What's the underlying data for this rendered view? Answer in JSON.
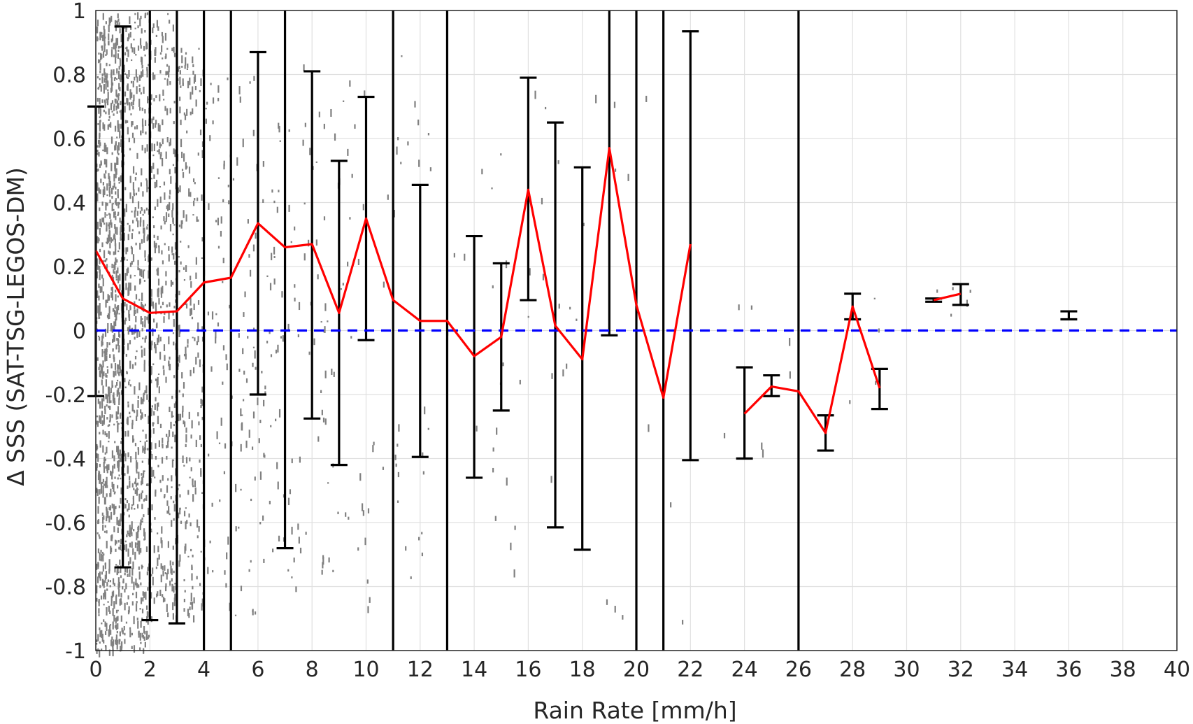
{
  "chart_data": {
    "type": "scatter",
    "xlabel": "Rain Rate [mm/h]",
    "ylabel": "Δ SSS (SAT-TSG-LEGOS-DM)",
    "xlim": [
      0,
      40
    ],
    "ylim": [
      -1,
      1
    ],
    "xticks": [
      0,
      2,
      4,
      6,
      8,
      10,
      12,
      14,
      16,
      18,
      20,
      22,
      24,
      26,
      28,
      30,
      32,
      34,
      36,
      38,
      40
    ],
    "yticks": [
      1,
      0.8,
      0.6,
      0.4,
      0.2,
      0,
      -0.2,
      -0.4,
      -0.6,
      -0.8,
      -1
    ],
    "ytick_labels": [
      "1",
      "0.8",
      "0.6",
      "0.4",
      "0.2",
      "0",
      "-0.2",
      "-0.4",
      "-0.6",
      "-0.8",
      "-1"
    ],
    "grid": true,
    "colors": {
      "scatter": "#808080",
      "mean_line": "#ff0000",
      "error_bars": "#000000",
      "zero_line": "#0000ff",
      "grid": "#e0e0e0",
      "axes": "#262626"
    },
    "reference_line": {
      "y": 0,
      "style": "dashed"
    },
    "series": [
      {
        "kind": "mean_line",
        "x": [
          0,
          1,
          2,
          3,
          4,
          5,
          6,
          7,
          8,
          9,
          10,
          11,
          12,
          13,
          14,
          15,
          16,
          17,
          18,
          19,
          20,
          21,
          22
        ],
        "y": [
          0.25,
          0.1,
          0.055,
          0.06,
          0.15,
          0.165,
          0.335,
          0.26,
          0.27,
          0.055,
          0.35,
          0.095,
          0.03,
          0.03,
          -0.08,
          -0.02,
          0.44,
          0.015,
          -0.09,
          0.57,
          0.08,
          -0.21,
          0.27
        ]
      },
      {
        "kind": "mean_line",
        "x": [
          24,
          25,
          26,
          27,
          28,
          29
        ],
        "y": [
          -0.26,
          -0.175,
          -0.19,
          -0.32,
          0.075,
          -0.18
        ]
      },
      {
        "kind": "mean_line",
        "x": [
          31,
          32
        ],
        "y": [
          0.095,
          0.115
        ]
      }
    ],
    "error_bars": [
      {
        "x": 0,
        "low": -0.205,
        "high": 0.7,
        "capped": true
      },
      {
        "x": 1,
        "low": -0.74,
        "high": 0.95,
        "capped": true
      },
      {
        "x": 2,
        "low": -0.905,
        "high": 1.0,
        "capped": true
      },
      {
        "x": 3,
        "low": -0.915,
        "high": 1.0,
        "capped": true
      },
      {
        "x": 4,
        "low": -1.0,
        "high": 1.0,
        "capped": false
      },
      {
        "x": 5,
        "low": -1.0,
        "high": 1.0,
        "capped": false
      },
      {
        "x": 6,
        "low": -0.2,
        "high": 0.87,
        "capped": true
      },
      {
        "x": 7,
        "low": -0.68,
        "high": 1.0,
        "capped": true
      },
      {
        "x": 8,
        "low": -0.275,
        "high": 0.81,
        "capped": true
      },
      {
        "x": 9,
        "low": -0.42,
        "high": 0.53,
        "capped": true
      },
      {
        "x": 10,
        "low": -0.03,
        "high": 0.73,
        "capped": true
      },
      {
        "x": 11,
        "low": -1.0,
        "high": 1.0,
        "capped": false
      },
      {
        "x": 12,
        "low": -0.395,
        "high": 0.455,
        "capped": true
      },
      {
        "x": 13,
        "low": -1.0,
        "high": 1.0,
        "capped": false
      },
      {
        "x": 14,
        "low": -0.46,
        "high": 0.295,
        "capped": true
      },
      {
        "x": 15,
        "low": -0.25,
        "high": 0.21,
        "capped": true
      },
      {
        "x": 16,
        "low": 0.095,
        "high": 0.79,
        "capped": true
      },
      {
        "x": 17,
        "low": -0.615,
        "high": 0.65,
        "capped": true
      },
      {
        "x": 18,
        "low": -0.685,
        "high": 0.51,
        "capped": true
      },
      {
        "x": 19,
        "low": -0.015,
        "high": 1.0,
        "capped": true
      },
      {
        "x": 20,
        "low": -1.0,
        "high": 1.0,
        "capped": false
      },
      {
        "x": 21,
        "low": -1.0,
        "high": 1.0,
        "capped": false
      },
      {
        "x": 22,
        "low": -0.405,
        "high": 0.935,
        "capped": true
      },
      {
        "x": 24,
        "low": -0.4,
        "high": -0.115,
        "capped": true
      },
      {
        "x": 25,
        "low": -0.205,
        "high": -0.14,
        "capped": true
      },
      {
        "x": 26,
        "low": -1.0,
        "high": 1.0,
        "capped": false
      },
      {
        "x": 27,
        "low": -0.375,
        "high": -0.265,
        "capped": true
      },
      {
        "x": 28,
        "low": 0.035,
        "high": 0.115,
        "capped": true
      },
      {
        "x": 29,
        "low": -0.245,
        "high": -0.12,
        "capped": true
      },
      {
        "x": 31,
        "low": 0.09,
        "high": 0.1,
        "capped": true
      },
      {
        "x": 32,
        "low": 0.08,
        "high": 0.145,
        "capped": true
      },
      {
        "x": 36,
        "low": 0.035,
        "high": 0.06,
        "capped": true
      }
    ],
    "scatter_clusters": [
      {
        "x_from": 0,
        "x_to": 1,
        "y_low": -1.0,
        "y_high": 1.0,
        "density": 1.0
      },
      {
        "x_from": 1,
        "x_to": 2,
        "y_low": -1.0,
        "y_high": 1.0,
        "density": 0.6
      },
      {
        "x_from": 2,
        "x_to": 3,
        "y_low": -0.9,
        "y_high": 1.0,
        "density": 0.4
      },
      {
        "x_from": 3,
        "x_to": 4,
        "y_low": -0.9,
        "y_high": 0.9,
        "density": 0.25
      },
      {
        "x_from": 4,
        "x_to": 6,
        "y_low": -0.9,
        "y_high": 0.85,
        "density": 0.12
      },
      {
        "x_from": 6,
        "x_to": 8,
        "y_low": -0.8,
        "y_high": 0.85,
        "density": 0.09
      },
      {
        "x_from": 8,
        "x_to": 10,
        "y_low": -0.8,
        "y_high": 0.8,
        "density": 0.06
      },
      {
        "x_from": 10,
        "x_to": 13,
        "y_low": -0.9,
        "y_high": 0.9,
        "density": 0.04
      },
      {
        "x_from": 13,
        "x_to": 17,
        "y_low": -0.8,
        "y_high": 0.8,
        "density": 0.03
      },
      {
        "x_from": 17,
        "x_to": 22,
        "y_low": -0.95,
        "y_high": 0.9,
        "density": 0.02
      },
      {
        "x_from": 23,
        "x_to": 29,
        "y_low": -0.4,
        "y_high": 0.12,
        "density": 0.012
      },
      {
        "x_from": 30.5,
        "x_to": 32.5,
        "y_low": 0.05,
        "y_high": 0.15,
        "density": 0.006
      }
    ]
  }
}
